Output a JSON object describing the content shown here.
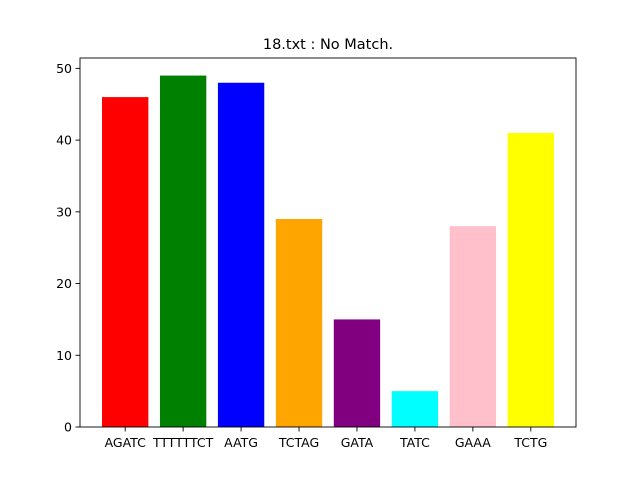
{
  "chart_data": {
    "type": "bar",
    "title": "18.txt : No Match.",
    "xlabel": "",
    "ylabel": "",
    "categories": [
      "AGATC",
      "TTTTTTCT",
      "AATG",
      "TCTAG",
      "GATA",
      "TATC",
      "GAAA",
      "TCTG"
    ],
    "values": [
      46,
      49,
      48,
      29,
      15,
      5,
      28,
      41
    ],
    "colors": [
      "#ff0000",
      "#008000",
      "#0000ff",
      "#ffa500",
      "#800080",
      "#00ffff",
      "#ffc0cb",
      "#ffff00"
    ],
    "ylim": [
      0,
      51.45
    ],
    "yticks": [
      0,
      10,
      20,
      30,
      40,
      50
    ],
    "grid": false,
    "legend": "none"
  }
}
